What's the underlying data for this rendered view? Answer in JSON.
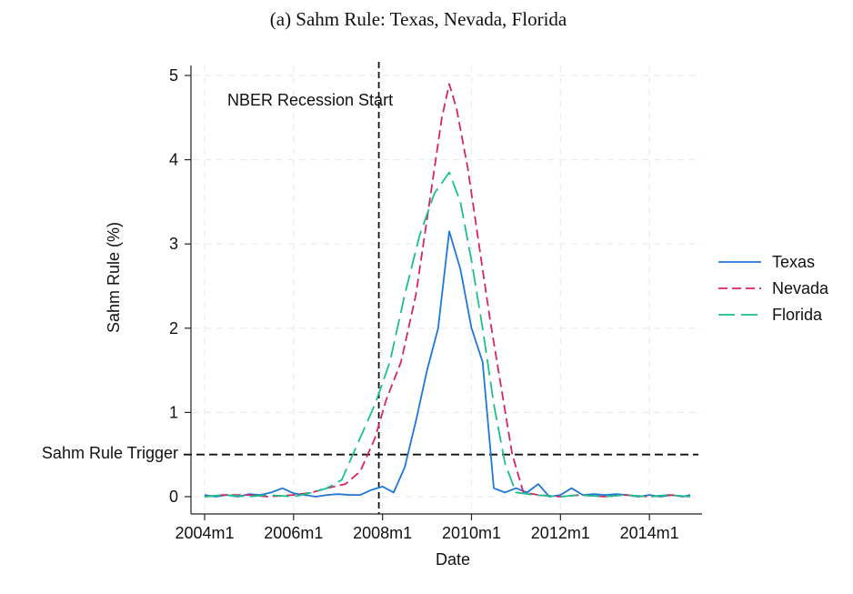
{
  "chart_data": {
    "type": "line",
    "title": "(a) Sahm Rule: Texas, Nevada, Florida",
    "xlabel": "Date",
    "ylabel": "Sahm Rule (%)",
    "xlim": [
      "2004m1",
      "2015m1"
    ],
    "ylim": [
      0,
      5
    ],
    "xticks": [
      "2004m1",
      "2006m1",
      "2008m1",
      "2010m1",
      "2012m1",
      "2014m1"
    ],
    "yticks": [
      0,
      1,
      2,
      3,
      4,
      5
    ],
    "grid": true,
    "legend_position": "right",
    "reference_lines": {
      "vertical": {
        "x": "2007m12",
        "label": "NBER Recession Start"
      },
      "horizontal": {
        "y": 0.5,
        "label": "Sahm Rule Trigger"
      }
    },
    "series": [
      {
        "name": "Texas",
        "color": "#1f77d8",
        "style": "solid",
        "points": [
          [
            "2004m1",
            0.02
          ],
          [
            "2004m4",
            0.0
          ],
          [
            "2004m7",
            0.02
          ],
          [
            "2004m10",
            0.0
          ],
          [
            "2005m1",
            0.03
          ],
          [
            "2005m4",
            0.02
          ],
          [
            "2005m7",
            0.05
          ],
          [
            "2005m10",
            0.1
          ],
          [
            "2006m1",
            0.04
          ],
          [
            "2006m4",
            0.02
          ],
          [
            "2006m7",
            0.0
          ],
          [
            "2006m10",
            0.02
          ],
          [
            "2007m1",
            0.03
          ],
          [
            "2007m4",
            0.02
          ],
          [
            "2007m7",
            0.02
          ],
          [
            "2007m10",
            0.08
          ],
          [
            "2008m1",
            0.12
          ],
          [
            "2008m4",
            0.05
          ],
          [
            "2008m7",
            0.35
          ],
          [
            "2008m10",
            0.9
          ],
          [
            "2009m1",
            1.5
          ],
          [
            "2009m4",
            2.0
          ],
          [
            "2009m7",
            3.15
          ],
          [
            "2009m10",
            2.7
          ],
          [
            "2010m1",
            2.0
          ],
          [
            "2010m4",
            1.6
          ],
          [
            "2010m7",
            0.1
          ],
          [
            "2010m10",
            0.05
          ],
          [
            "2011m1",
            0.1
          ],
          [
            "2011m4",
            0.05
          ],
          [
            "2011m7",
            0.15
          ],
          [
            "2011m10",
            0.0
          ],
          [
            "2012m1",
            0.02
          ],
          [
            "2012m4",
            0.1
          ],
          [
            "2012m7",
            0.02
          ],
          [
            "2012m10",
            0.03
          ],
          [
            "2013m1",
            0.02
          ],
          [
            "2013m4",
            0.03
          ],
          [
            "2013m7",
            0.02
          ],
          [
            "2013m10",
            0.0
          ],
          [
            "2014m1",
            0.02
          ],
          [
            "2014m4",
            0.0
          ],
          [
            "2014m7",
            0.02
          ],
          [
            "2014m10",
            0.0
          ],
          [
            "2014m12",
            0.02
          ]
        ]
      },
      {
        "name": "Nevada",
        "color": "#d6265c",
        "style": "dash",
        "points": [
          [
            "2004m1",
            0.0
          ],
          [
            "2004m6",
            0.02
          ],
          [
            "2005m1",
            0.02
          ],
          [
            "2005m6",
            0.0
          ],
          [
            "2006m1",
            0.02
          ],
          [
            "2006m6",
            0.05
          ],
          [
            "2006m10",
            0.1
          ],
          [
            "2007m3",
            0.15
          ],
          [
            "2007m7",
            0.3
          ],
          [
            "2007m11",
            0.7
          ],
          [
            "2008m2",
            1.15
          ],
          [
            "2008m6",
            1.6
          ],
          [
            "2008m10",
            2.4
          ],
          [
            "2009m2",
            3.6
          ],
          [
            "2009m5",
            4.5
          ],
          [
            "2009m7",
            4.9
          ],
          [
            "2009m9",
            4.6
          ],
          [
            "2009m12",
            3.9
          ],
          [
            "2010m3",
            3.0
          ],
          [
            "2010m6",
            2.1
          ],
          [
            "2010m9",
            1.3
          ],
          [
            "2010m12",
            0.5
          ],
          [
            "2011m3",
            0.05
          ],
          [
            "2011m7",
            0.02
          ],
          [
            "2012m1",
            0.0
          ],
          [
            "2012m6",
            0.02
          ],
          [
            "2013m1",
            0.0
          ],
          [
            "2013m6",
            0.02
          ],
          [
            "2014m1",
            0.0
          ],
          [
            "2014m6",
            0.02
          ],
          [
            "2014m12",
            0.0
          ]
        ]
      },
      {
        "name": "Florida",
        "color": "#1cbf8c",
        "style": "longdash",
        "points": [
          [
            "2004m1",
            0.0
          ],
          [
            "2004m6",
            0.02
          ],
          [
            "2005m1",
            0.0
          ],
          [
            "2005m6",
            0.02
          ],
          [
            "2006m1",
            0.0
          ],
          [
            "2006m6",
            0.05
          ],
          [
            "2006m10",
            0.1
          ],
          [
            "2007m2",
            0.2
          ],
          [
            "2007m6",
            0.6
          ],
          [
            "2007m11",
            1.1
          ],
          [
            "2008m3",
            1.6
          ],
          [
            "2008m7",
            2.4
          ],
          [
            "2008m11",
            3.1
          ],
          [
            "2009m3",
            3.6
          ],
          [
            "2009m7",
            3.85
          ],
          [
            "2009m10",
            3.5
          ],
          [
            "2010m1",
            2.8
          ],
          [
            "2010m4",
            2.0
          ],
          [
            "2010m7",
            1.1
          ],
          [
            "2010m10",
            0.4
          ],
          [
            "2011m1",
            0.05
          ],
          [
            "2011m6",
            0.02
          ],
          [
            "2012m1",
            0.0
          ],
          [
            "2012m6",
            0.02
          ],
          [
            "2013m1",
            0.0
          ],
          [
            "2013m6",
            0.02
          ],
          [
            "2014m1",
            0.0
          ],
          [
            "2014m6",
            0.02
          ],
          [
            "2014m12",
            0.0
          ]
        ]
      }
    ]
  }
}
